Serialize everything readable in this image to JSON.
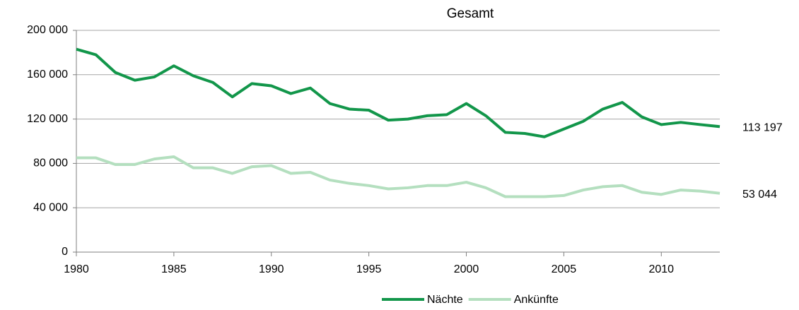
{
  "chart_data": {
    "type": "line",
    "title": "Gesamt",
    "x": [
      1980,
      1981,
      1982,
      1983,
      1984,
      1985,
      1986,
      1987,
      1988,
      1989,
      1990,
      1991,
      1992,
      1993,
      1994,
      1995,
      1996,
      1997,
      1998,
      1999,
      2000,
      2001,
      2002,
      2003,
      2004,
      2005,
      2006,
      2007,
      2008,
      2009,
      2010,
      2011,
      2012,
      2013
    ],
    "series": [
      {
        "name": "Nächte",
        "color": "#12964a",
        "values": [
          183000,
          178000,
          162000,
          155000,
          158000,
          168000,
          159000,
          153000,
          140000,
          152000,
          150000,
          143000,
          148000,
          134000,
          129000,
          128000,
          119000,
          120000,
          123000,
          124000,
          134000,
          123000,
          108000,
          107000,
          104000,
          111000,
          118000,
          129000,
          135000,
          122000,
          115000,
          117000,
          115000,
          113197
        ],
        "value_labels": [
          null,
          null,
          null,
          null,
          null,
          null,
          null,
          null,
          null,
          null,
          null,
          null,
          null,
          null,
          null,
          null,
          null,
          null,
          null,
          null,
          null,
          null,
          null,
          null,
          null,
          null,
          null,
          null,
          null,
          null,
          null,
          null,
          null,
          "113 197"
        ]
      },
      {
        "name": "Ankünfte",
        "color": "#b4dfbf",
        "values": [
          85000,
          85000,
          79000,
          79000,
          84000,
          86000,
          76000,
          76000,
          71000,
          77000,
          78000,
          71000,
          72000,
          65000,
          62000,
          60000,
          57000,
          58000,
          60000,
          60000,
          63000,
          58000,
          50000,
          50000,
          50000,
          51000,
          56000,
          59000,
          60000,
          54000,
          52000,
          56000,
          55000,
          53044
        ],
        "value_labels": [
          null,
          null,
          null,
          null,
          null,
          null,
          null,
          null,
          null,
          null,
          null,
          null,
          null,
          null,
          null,
          null,
          null,
          null,
          null,
          null,
          null,
          null,
          null,
          null,
          null,
          null,
          null,
          null,
          null,
          null,
          null,
          null,
          null,
          "53 044"
        ]
      }
    ],
    "xlim": [
      1980,
      2013
    ],
    "xticks": [
      1980,
      1985,
      1990,
      1995,
      2000,
      2005,
      2010
    ],
    "ylim": [
      0,
      200000
    ],
    "yticks": [
      0,
      {
        "value": 40000,
        "label": "40 000"
      },
      {
        "value": 80000,
        "label": "80 000"
      },
      {
        "value": 120000,
        "label": "120 000"
      },
      {
        "value": 160000,
        "label": "160 000"
      },
      {
        "value": 200000,
        "label": "200 000"
      }
    ],
    "grid": true,
    "legend": "bottom"
  }
}
